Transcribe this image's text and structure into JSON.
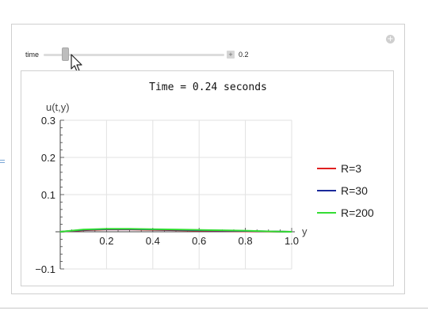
{
  "controls": {
    "slider_label": "time",
    "slider_value": "0.2",
    "slider_fraction": 0.12,
    "expand_glyph": "+",
    "plus_glyph": "+"
  },
  "chart_data": {
    "type": "line",
    "title": "Time = 0.24 seconds",
    "xlabel": "y",
    "ylabel": "u(t,y)",
    "xlim": [
      0,
      1.0
    ],
    "ylim": [
      -0.1,
      0.3
    ],
    "x_ticks": [
      "0.2",
      "0.4",
      "0.6",
      "0.8",
      "1.0"
    ],
    "y_ticks": [
      "−0.1",
      "0.1",
      "0.2",
      "0.3"
    ],
    "grid": true,
    "legend_position": "right",
    "series": [
      {
        "name": "R=3",
        "color": "#e02020",
        "x": [
          0,
          0.1,
          0.2,
          0.3,
          0.4,
          0.5,
          0.6,
          0.7,
          0.8,
          0.9,
          1.0
        ],
        "y": [
          0,
          0.004,
          0.006,
          0.006,
          0.005,
          0.004,
          0.003,
          0.002,
          0.001,
          0.0005,
          0
        ]
      },
      {
        "name": "R=30",
        "color": "#1a2a9a",
        "x": [
          0,
          0.1,
          0.2,
          0.3,
          0.4,
          0.5,
          0.6,
          0.7,
          0.8,
          0.9,
          1.0
        ],
        "y": [
          0,
          0.005,
          0.007,
          0.007,
          0.006,
          0.005,
          0.004,
          0.003,
          0.002,
          0.001,
          0
        ]
      },
      {
        "name": "R=200",
        "color": "#33dd33",
        "x": [
          0,
          0.1,
          0.2,
          0.3,
          0.4,
          0.5,
          0.6,
          0.7,
          0.8,
          0.9,
          1.0
        ],
        "y": [
          0,
          0.006,
          0.008,
          0.008,
          0.007,
          0.006,
          0.005,
          0.004,
          0.003,
          0.001,
          0
        ]
      }
    ]
  }
}
